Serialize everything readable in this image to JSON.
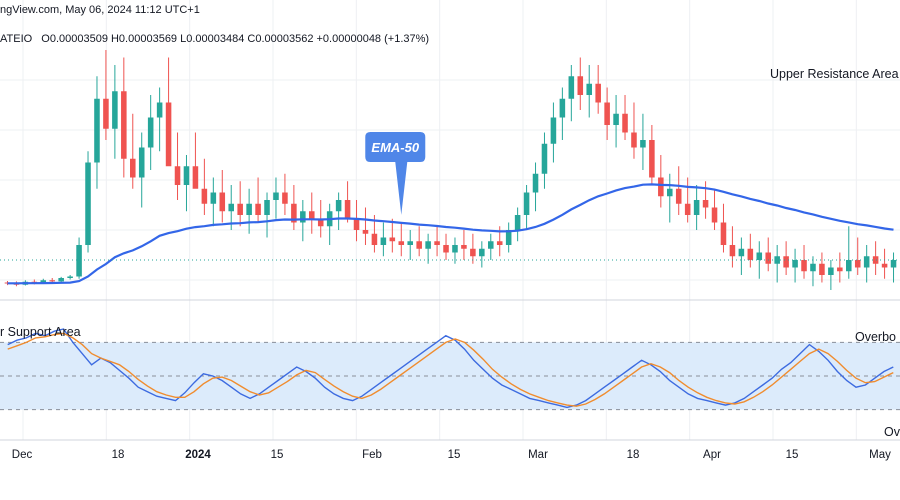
{
  "header": {
    "source_line": "ngView.com, May 06, 2024 11:12 UTC+1",
    "symbol": "ATEIO",
    "ohlc": "O0.00003509 H0.00003569 L0.00003484 C0.00003562 +0.00000048 (+1.37%)"
  },
  "annotations": {
    "upper_resistance": "Upper Resistance Area",
    "lower_support": "r Support Area",
    "ema_callout": "EMA-50",
    "overbought": "Overbo",
    "oversold": "Ov"
  },
  "colors": {
    "up": "#26a69a",
    "down": "#ef5350",
    "ema": "#3366e8",
    "callout": "#4f86e8",
    "stoch_k": "#3d6be0",
    "stoch_d": "#f08c2e",
    "band": "#dcebfb",
    "grid": "#eef0f3"
  },
  "chart_data": [
    {
      "type": "candlestick",
      "title": "",
      "x_tick_labels": [
        "Dec",
        "18",
        "2024",
        "15",
        "Feb",
        "15",
        "Mar",
        "18",
        "Apr",
        "15",
        "May"
      ],
      "series": [
        {
          "name": "EMA-50",
          "kind": "line"
        }
      ],
      "price_data": [
        [
          100,
          100.4,
          99.3,
          99.8
        ],
        [
          99.8,
          100.3,
          99.0,
          99.4
        ],
        [
          99.4,
          100.6,
          99.2,
          100.2
        ],
        [
          100.2,
          100.8,
          99.5,
          99.9
        ],
        [
          99.9,
          101.0,
          99.6,
          100.6
        ],
        [
          100.6,
          101.2,
          100.0,
          100.3
        ],
        [
          100.3,
          101.5,
          100.1,
          101.2
        ],
        [
          101.2,
          102.0,
          100.8,
          101.6
        ],
        [
          101.6,
          112,
          101,
          110
        ],
        [
          110,
          135,
          108,
          132
        ],
        [
          132,
          155,
          125,
          149
        ],
        [
          149,
          162,
          138,
          141
        ],
        [
          141,
          158,
          133,
          151
        ],
        [
          151,
          160,
          128,
          133
        ],
        [
          133,
          145,
          125,
          128
        ],
        [
          128,
          140,
          120,
          136
        ],
        [
          136,
          150,
          130,
          144
        ],
        [
          144,
          152,
          135,
          148
        ],
        [
          148,
          160,
          138,
          131
        ],
        [
          131,
          140,
          122,
          126
        ],
        [
          126,
          134,
          119,
          131
        ],
        [
          131,
          140,
          126,
          125
        ],
        [
          125,
          133,
          118,
          121
        ],
        [
          121,
          128,
          115,
          124
        ],
        [
          124,
          130,
          116,
          119
        ],
        [
          119,
          126,
          114,
          121
        ],
        [
          121,
          127,
          115,
          118
        ],
        [
          118,
          125,
          113,
          121
        ],
        [
          121,
          128,
          116,
          118
        ],
        [
          118,
          124,
          112,
          122
        ],
        [
          122,
          128,
          117,
          124
        ],
        [
          124,
          129,
          118,
          121
        ],
        [
          121,
          126,
          114,
          116
        ],
        [
          116,
          122,
          111,
          119
        ],
        [
          119,
          124,
          113,
          117
        ],
        [
          117,
          122,
          112,
          115
        ],
        [
          115,
          121,
          110,
          119
        ],
        [
          119,
          124,
          114,
          122
        ],
        [
          122,
          127,
          116,
          117
        ],
        [
          117,
          122,
          111,
          114
        ],
        [
          114,
          120,
          110,
          113
        ],
        [
          113,
          118,
          108,
          110
        ],
        [
          110,
          116,
          107,
          112
        ],
        [
          112,
          117,
          108,
          111
        ],
        [
          111,
          116,
          107,
          110
        ],
        [
          110,
          114,
          106,
          111
        ],
        [
          111,
          115,
          107,
          109
        ],
        [
          109,
          113,
          105,
          111
        ],
        [
          111,
          115,
          107,
          110
        ],
        [
          110,
          113,
          106,
          108
        ],
        [
          108,
          112,
          105,
          110
        ],
        [
          110,
          114,
          106,
          109
        ],
        [
          109,
          113,
          105,
          107
        ],
        [
          107,
          111,
          104,
          109
        ],
        [
          109,
          113,
          106,
          111
        ],
        [
          111,
          115,
          107,
          110
        ],
        [
          110,
          116,
          108,
          114
        ],
        [
          114,
          120,
          111,
          118
        ],
        [
          118,
          126,
          114,
          124
        ],
        [
          124,
          132,
          119,
          129
        ],
        [
          129,
          140,
          125,
          137
        ],
        [
          137,
          148,
          132,
          144
        ],
        [
          144,
          152,
          138,
          149
        ],
        [
          149,
          158,
          143,
          155
        ],
        [
          155,
          160,
          146,
          150
        ],
        [
          150,
          158,
          144,
          153
        ],
        [
          153,
          158,
          145,
          148
        ],
        [
          148,
          152,
          138,
          142
        ],
        [
          142,
          150,
          136,
          145
        ],
        [
          145,
          150,
          138,
          140
        ],
        [
          140,
          148,
          133,
          136
        ],
        [
          136,
          145,
          130,
          138
        ],
        [
          138,
          142,
          126,
          128
        ],
        [
          128,
          134,
          120,
          123
        ],
        [
          123,
          129,
          116,
          125
        ],
        [
          125,
          131,
          118,
          121
        ],
        [
          121,
          128,
          116,
          118
        ],
        [
          118,
          126,
          114,
          122
        ],
        [
          122,
          127,
          117,
          120
        ],
        [
          120,
          125,
          114,
          116
        ],
        [
          116,
          121,
          108,
          110
        ],
        [
          110,
          115,
          104,
          107
        ],
        [
          107,
          112,
          102,
          109
        ],
        [
          109,
          113,
          104,
          106
        ],
        [
          106,
          111,
          101,
          108
        ],
        [
          108,
          112,
          103,
          105
        ],
        [
          105,
          110,
          100,
          107
        ],
        [
          107,
          111,
          102,
          104
        ],
        [
          104,
          109,
          100,
          106
        ],
        [
          106,
          110,
          101,
          103
        ],
        [
          103,
          107,
          99,
          105
        ],
        [
          105,
          108,
          100,
          102
        ],
        [
          102,
          106,
          98,
          104
        ],
        [
          104,
          108,
          100,
          103
        ],
        [
          103,
          115,
          101,
          106
        ],
        [
          106,
          112,
          102,
          104
        ],
        [
          104,
          110,
          100,
          107
        ],
        [
          107,
          111,
          102,
          105
        ],
        [
          105,
          109,
          101,
          104
        ],
        [
          104,
          108,
          100,
          106
        ]
      ]
    },
    {
      "type": "line",
      "title": "",
      "band": "oversold-overbought zone",
      "series": [
        {
          "name": "",
          "color": "#3d6be0",
          "values": [
            78,
            82,
            84,
            88,
            86,
            90,
            92,
            80,
            70,
            60,
            66,
            62,
            55,
            48,
            40,
            36,
            32,
            30,
            28,
            35,
            44,
            52,
            50,
            46,
            40,
            34,
            30,
            34,
            40,
            46,
            52,
            58,
            54,
            48,
            40,
            34,
            30,
            28,
            32,
            38,
            44,
            50,
            56,
            62,
            68,
            74,
            80,
            86,
            82,
            74,
            64,
            56,
            48,
            42,
            38,
            34,
            30,
            28,
            26,
            24,
            22,
            24,
            28,
            34,
            40,
            46,
            52,
            58,
            64,
            60,
            54,
            46,
            40,
            34,
            30,
            28,
            26,
            24,
            26,
            30,
            36,
            42,
            48,
            56,
            62,
            70,
            78,
            72,
            64,
            54,
            46,
            40,
            42,
            48,
            54,
            58
          ]
        },
        {
          "name": "",
          "color": "#f08c2e",
          "values": [
            74,
            77,
            80,
            84,
            85,
            87,
            88,
            84,
            78,
            70,
            66,
            63,
            60,
            54,
            47,
            41,
            36,
            33,
            31,
            31,
            36,
            43,
            48,
            49,
            46,
            41,
            36,
            33,
            35,
            40,
            45,
            51,
            55,
            53,
            47,
            41,
            36,
            32,
            30,
            33,
            38,
            44,
            50,
            56,
            62,
            68,
            74,
            80,
            83,
            80,
            73,
            65,
            56,
            49,
            43,
            38,
            34,
            31,
            28,
            26,
            24,
            23,
            25,
            29,
            34,
            40,
            46,
            52,
            58,
            61,
            58,
            53,
            46,
            40,
            35,
            31,
            28,
            26,
            25,
            27,
            31,
            36,
            42,
            49,
            56,
            63,
            70,
            74,
            70,
            63,
            55,
            48,
            44,
            45,
            49,
            53
          ]
        }
      ],
      "ylim": [
        0,
        100
      ],
      "levels": [
        80,
        50,
        20
      ]
    }
  ]
}
